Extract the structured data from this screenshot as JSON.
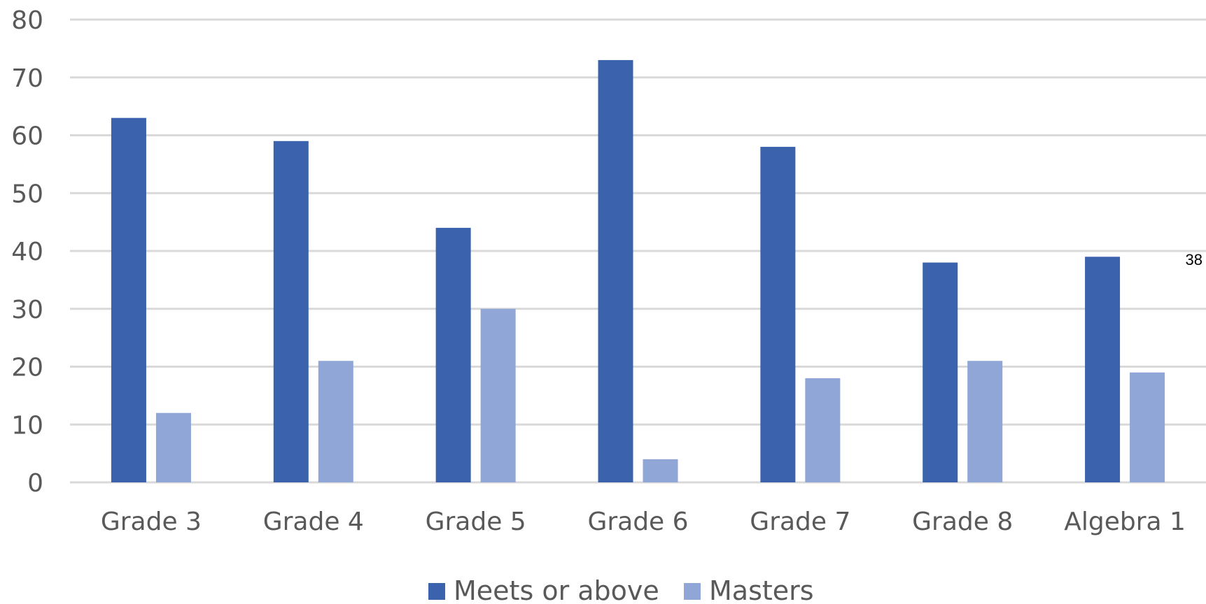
{
  "chart_data": {
    "type": "bar",
    "categories": [
      "Grade 3",
      "Grade 4",
      "Grade 5",
      "Grade 6",
      "Grade 7",
      "Grade 8",
      "Algebra 1"
    ],
    "series": [
      {
        "name": "Meets or above",
        "color": "#3b62ad",
        "values": [
          63,
          59,
          44,
          73,
          58,
          38,
          39
        ]
      },
      {
        "name": "Masters",
        "color": "#8fa6d6",
        "values": [
          12,
          21,
          30,
          4,
          18,
          21,
          19
        ]
      }
    ],
    "ylim": [
      0,
      80
    ],
    "yticks": [
      0,
      10,
      20,
      30,
      40,
      50,
      60,
      70,
      80
    ],
    "grid": true,
    "legend_position": "bottom",
    "annotation": "38"
  }
}
